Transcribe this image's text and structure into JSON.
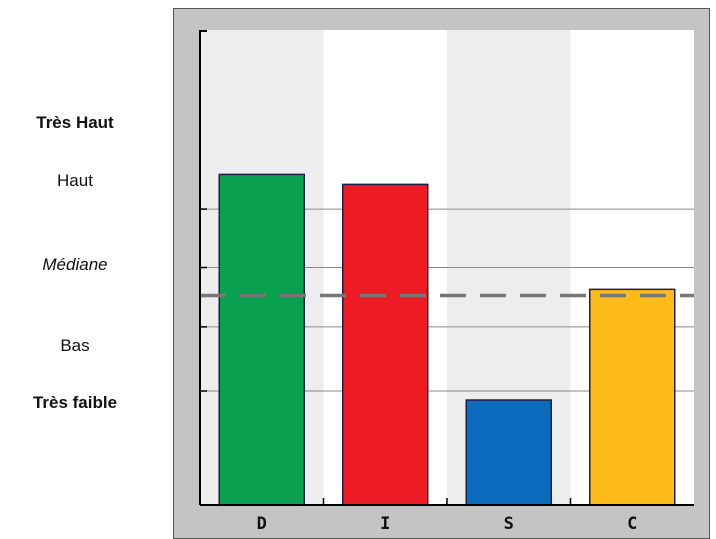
{
  "level_labels": [
    {
      "text": "Très Haut",
      "style": "bold"
    },
    {
      "text": "Haut",
      "style": "normal"
    },
    {
      "text": "Médiane",
      "style": "italic"
    },
    {
      "text": "Bas",
      "style": "normal"
    },
    {
      "text": "Très faible",
      "style": "bold"
    }
  ],
  "chart_data": {
    "type": "bar",
    "title": "",
    "xlabel": "",
    "ylabel": "",
    "categories": [
      "D",
      "I",
      "S",
      "C"
    ],
    "values": [
      69.6,
      67.5,
      22.1,
      45.4
    ],
    "ylim": [
      0,
      100
    ],
    "gridlines": [
      24.0,
      37.5,
      50.0,
      62.3
    ],
    "median_line": 44.1,
    "grid": true,
    "colors": {
      "bars": [
        "#0aa050",
        "#ed1c24",
        "#0b6bbd",
        "#fdbb19"
      ],
      "frame": "#c4c4c4",
      "plot_band_light": "#ededed",
      "plot_band_white": "#ffffff",
      "grid": "#888888",
      "median": "#777777"
    }
  }
}
